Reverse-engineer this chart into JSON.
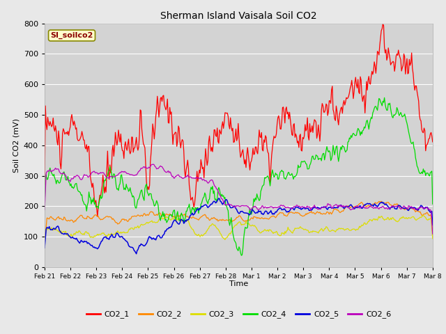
{
  "title": "Sherman Island Vaisala Soil CO2",
  "ylabel": "Soil CO2 (mV)",
  "xlabel": "Time",
  "watermark": "SI_soilco2",
  "ylim": [
    0,
    800
  ],
  "facecolor": "#e8e8e8",
  "plot_bg": "#d3d3d3",
  "series_colors": {
    "CO2_1": "#ff0000",
    "CO2_2": "#ff8800",
    "CO2_3": "#dddd00",
    "CO2_4": "#00dd00",
    "CO2_5": "#0000dd",
    "CO2_6": "#bb00bb"
  },
  "xtick_labels": [
    "Feb 21",
    "Feb 22",
    "Feb 23",
    "Feb 24",
    "Feb 25",
    "Feb 26",
    "Feb 27",
    "Feb 28",
    "Mar 1",
    "Mar 2",
    "Mar 3",
    "Mar 4",
    "Mar 5",
    "Mar 6",
    "Mar 7",
    "Mar 8"
  ],
  "ytick_vals": [
    0,
    100,
    200,
    300,
    400,
    500,
    600,
    700,
    800
  ],
  "n_points": 500,
  "seed": 99
}
